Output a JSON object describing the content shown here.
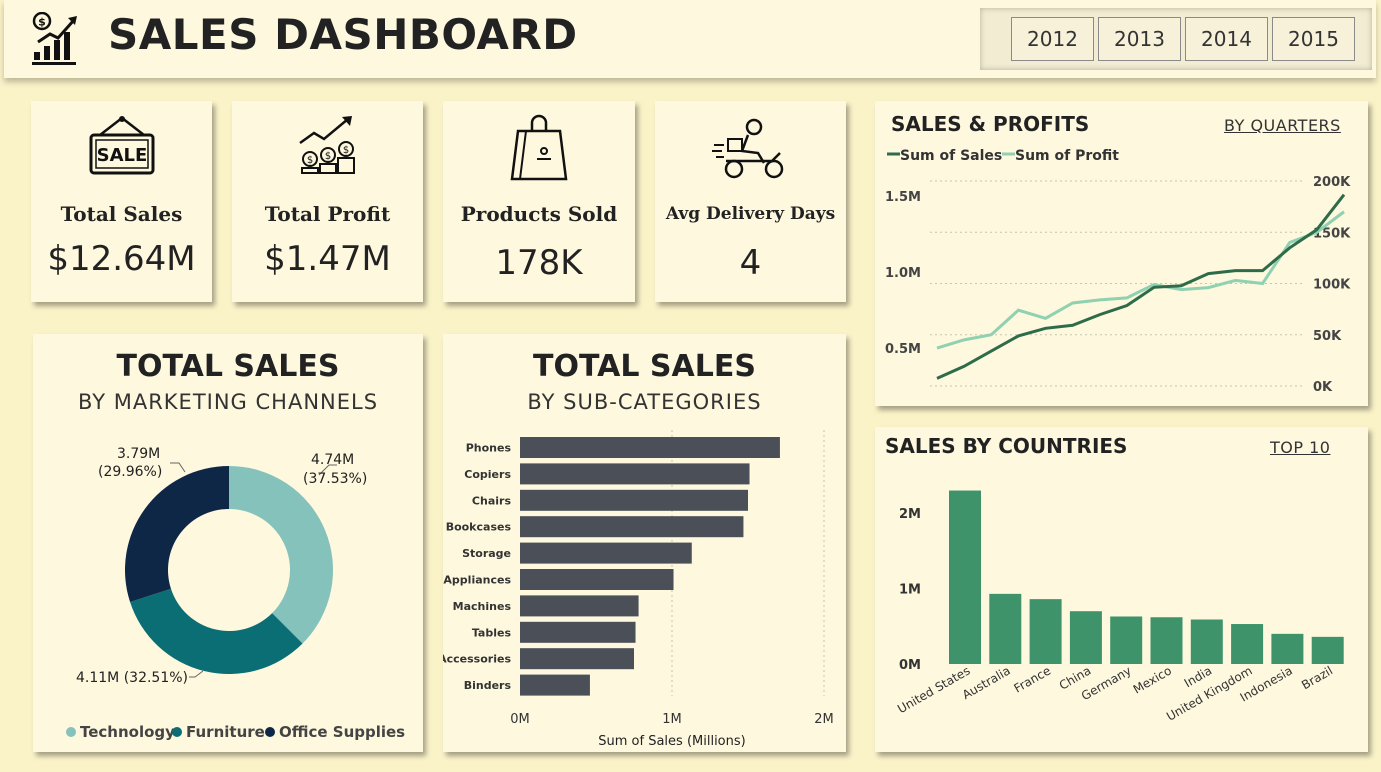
{
  "header": {
    "title": "SALES DASHBOARD",
    "years": [
      "2012",
      "2013",
      "2014",
      "2015"
    ]
  },
  "kpis": [
    {
      "label": "Total Sales",
      "value": "$12.64M",
      "icon": "sale-sign-icon"
    },
    {
      "label": "Total Profit",
      "value": "$1.47M",
      "icon": "profit-growth-icon"
    },
    {
      "label": "Products Sold",
      "value": "178K",
      "icon": "shopping-bag-icon"
    },
    {
      "label": "Avg Delivery Days",
      "value": "4",
      "icon": "delivery-scooter-icon"
    }
  ],
  "colors": {
    "background": "#fbf3c8",
    "card": "#fdf8de",
    "technology": "#84c2bb",
    "furniture": "#0b6e74",
    "office_supplies": "#0f2747",
    "bar_dark": "#4a4f58",
    "sales_line": "#2e6b4a",
    "profit_line": "#8fd1b0",
    "country_bar": "#3f936a"
  },
  "donut": {
    "title": "TOTAL SALES",
    "subtitle": "BY MARKETING CHANNELS",
    "labels": [
      {
        "value": "4.74M",
        "pct": "(37.53%)"
      },
      {
        "value": "4.11M (32.51%)",
        "pct": ""
      },
      {
        "value": "3.79M",
        "pct": "(29.96%)"
      }
    ],
    "legend": [
      "Technology",
      "Furniture",
      "Office Supplies"
    ]
  },
  "subcat": {
    "title": "TOTAL SALES",
    "subtitle": "BY SUB-CATEGORIES"
  },
  "sales_profit": {
    "title": "SALES & PROFITS",
    "link": "BY QUARTERS"
  },
  "countries": {
    "title": "SALES BY COUNTRIES",
    "link": "TOP 10"
  },
  "chart_data": [
    {
      "type": "pie",
      "variant": "donut",
      "categories": [
        "Technology",
        "Furniture",
        "Office Supplies"
      ],
      "values": [
        4.74,
        4.11,
        3.79
      ],
      "percentages": [
        37.53,
        32.51,
        29.96
      ],
      "unit": "M",
      "title": "TOTAL SALES",
      "subtitle": "BY MARKETING CHANNELS",
      "legend": "bottom"
    },
    {
      "type": "bar",
      "orientation": "horizontal",
      "categories": [
        "Phones",
        "Copiers",
        "Chairs",
        "Bookcases",
        "Storage",
        "Appliances",
        "Machines",
        "Tables",
        "Accessories",
        "Binders"
      ],
      "values": [
        1.71,
        1.51,
        1.5,
        1.47,
        1.13,
        1.01,
        0.78,
        0.76,
        0.75,
        0.46
      ],
      "xlabel": "Sum of Sales (Millions)",
      "xticks": [
        "0M",
        "1M",
        "2M"
      ],
      "xlim": [
        0,
        2
      ],
      "title": "TOTAL SALES",
      "subtitle": "BY SUB-CATEGORIES",
      "grid": true
    },
    {
      "type": "line",
      "title": "SALES & PROFITS",
      "x_count": 16,
      "series": [
        {
          "name": "Sum of Sales",
          "axis": "left",
          "values": [
            0.3,
            0.38,
            0.48,
            0.58,
            0.63,
            0.65,
            0.72,
            0.78,
            0.9,
            0.91,
            0.99,
            1.01,
            1.01,
            1.16,
            1.28,
            1.51
          ]
        },
        {
          "name": "Sum of Profit",
          "axis": "right",
          "values": [
            37000,
            45000,
            50000,
            74000,
            66000,
            81000,
            84000,
            86000,
            99000,
            94000,
            96000,
            103000,
            100000,
            140000,
            150000,
            170000
          ]
        }
      ],
      "y_left_ticks": [
        "0.5M",
        "1.0M",
        "1.5M"
      ],
      "y_left_range": [
        0.25,
        1.6
      ],
      "y_right_ticks": [
        "0K",
        "50K",
        "100K",
        "150K",
        "200K"
      ],
      "y_right_range": [
        0,
        200000
      ],
      "legend": "top-left"
    },
    {
      "type": "bar",
      "title": "SALES BY COUNTRIES",
      "categories": [
        "United States",
        "Australia",
        "France",
        "China",
        "Germany",
        "Mexico",
        "India",
        "United Kingdom",
        "Indonesia",
        "Brazil"
      ],
      "values": [
        2.3,
        0.93,
        0.86,
        0.7,
        0.63,
        0.62,
        0.59,
        0.53,
        0.4,
        0.36
      ],
      "yticks": [
        "0M",
        "1M",
        "2M"
      ],
      "ylim": [
        0,
        2.4
      ]
    }
  ]
}
